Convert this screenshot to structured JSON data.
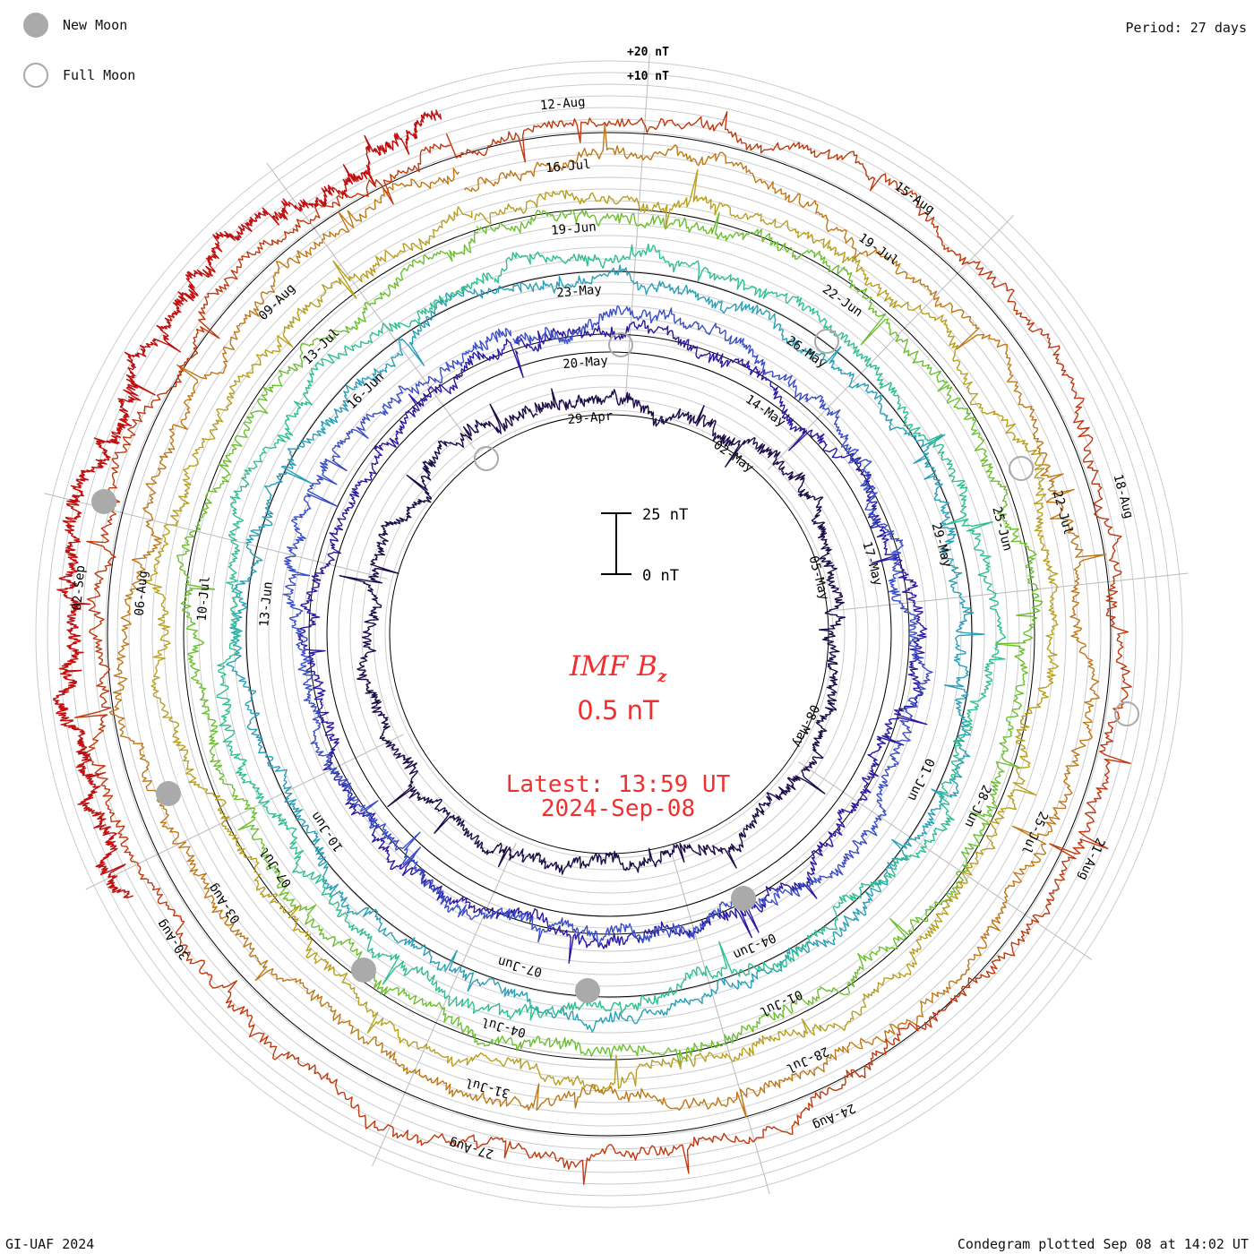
{
  "header": {
    "period": "Period: 27 days"
  },
  "legend": {
    "new_moon": "New Moon",
    "full_moon": "Full Moon"
  },
  "center": {
    "title_main": "IMF B",
    "title_sub": "z",
    "value": "0.5 nT",
    "latest_time": "Latest: 13:59 UT",
    "latest_date": "2024-Sep-08"
  },
  "footer": {
    "credit": "GI-UAF 2024",
    "plotted": "Condegram plotted Sep 08 at 14:02 UT"
  },
  "chart_data": {
    "type": "line",
    "subtype": "polar-condegram",
    "quantity": "IMF Bz",
    "units": "nT",
    "period_days": 27,
    "latest_value_nT": 0.5,
    "scale_bar_labels": [
      "25 nT",
      "0 nT"
    ],
    "scale_bar_nT": [
      0,
      25
    ],
    "outer_scale_labels": [
      "+20 nT",
      "+10 nT"
    ],
    "series": [
      {
        "name": "",
        "color": "#1c0c48",
        "start": "2024-Apr-21",
        "date_labels": [
          "29-Apr",
          "02-May",
          "05-May",
          "08-May"
        ]
      },
      {
        "name": "",
        "color": "#2a1aa0",
        "start": "2024-May-18",
        "date_labels": [
          "20-May",
          "23-May",
          "26-May",
          "29-May",
          "01-Jun",
          "04-Jun",
          "07-Jun",
          "10-Jun",
          "13-Jun",
          "16-Jun"
        ]
      },
      {
        "name": "",
        "color": "#3a4ec8",
        "start": "2024-May-17",
        "date_labels": [
          "14-May",
          "17-May"
        ]
      },
      {
        "name": "",
        "color": "#2aa0b8",
        "start": "2024-Jun-14",
        "date_labels": [
          "19-Jun",
          "22-Jun",
          "25-Jun",
          "28-Jun",
          "01-Jul",
          "04-Jul",
          "07-Jul",
          "10-Jul",
          "13-Jul",
          "16-Jul"
        ]
      },
      {
        "name": "",
        "color": "#2ec090",
        "start": "2024-Jun-14",
        "date_labels": []
      },
      {
        "name": "",
        "color": "#6cc030",
        "start": "2024-Jul-11",
        "date_labels": [
          "19-Jul",
          "22-Jul",
          "25-Jul",
          "28-Jul",
          "31-Jul",
          "03-Aug",
          "06-Aug",
          "09-Aug",
          "12-Aug",
          "16-Jul"
        ]
      },
      {
        "name": "",
        "color": "#b8a020",
        "start": "2024-Aug-07",
        "date_labels": [
          "15-Aug",
          "18-Aug",
          "21-Aug",
          "24-Aug",
          "27-Aug",
          "30-Aug",
          "02-Sep"
        ]
      },
      {
        "name": "",
        "color": "#c07818",
        "start": "2024-Aug-07",
        "date_labels": []
      },
      {
        "name": "",
        "color": "#c03a10",
        "start": "2024-Aug-07",
        "date_labels": []
      },
      {
        "name": "",
        "color": "#c01010",
        "start": "2024-Sep-03",
        "date_labels": []
      }
    ],
    "ring_labels": [
      {
        "ring": 0,
        "label": "29-Apr"
      },
      {
        "ring": 0,
        "label": "02-May"
      },
      {
        "ring": 0,
        "label": "05-May"
      },
      {
        "ring": 0,
        "label": "08-May"
      },
      {
        "ring": 1,
        "label": "20-May"
      },
      {
        "ring": 1,
        "label": "14-May"
      },
      {
        "ring": 1,
        "label": "17-May"
      },
      {
        "ring": 2,
        "label": "23-May"
      },
      {
        "ring": 2,
        "label": "26-May"
      },
      {
        "ring": 2,
        "label": "29-May"
      },
      {
        "ring": 2,
        "label": "01-Jun"
      },
      {
        "ring": 2,
        "label": "04-Jun"
      },
      {
        "ring": 2,
        "label": "07-Jun"
      },
      {
        "ring": 2,
        "label": "10-Jun"
      },
      {
        "ring": 2,
        "label": "13-Jun"
      },
      {
        "ring": 2,
        "label": "16-Jun"
      },
      {
        "ring": 3,
        "label": "19-Jun"
      },
      {
        "ring": 3,
        "label": "22-Jun"
      },
      {
        "ring": 3,
        "label": "25-Jun"
      },
      {
        "ring": 3,
        "label": "28-Jun"
      },
      {
        "ring": 3,
        "label": "01-Jul"
      },
      {
        "ring": 3,
        "label": "04-Jul"
      },
      {
        "ring": 3,
        "label": "07-Jul"
      },
      {
        "ring": 3,
        "label": "10-Jul"
      },
      {
        "ring": 3,
        "label": "13-Jul"
      },
      {
        "ring": 4,
        "label": "16-Jul"
      },
      {
        "ring": 4,
        "label": "19-Jul"
      },
      {
        "ring": 4,
        "label": "22-Jul"
      },
      {
        "ring": 4,
        "label": "25-Jul"
      },
      {
        "ring": 4,
        "label": "28-Jul"
      },
      {
        "ring": 4,
        "label": "31-Jul"
      },
      {
        "ring": 4,
        "label": "03-Aug"
      },
      {
        "ring": 4,
        "label": "06-Aug"
      },
      {
        "ring": 4,
        "label": "09-Aug"
      },
      {
        "ring": 5,
        "label": "12-Aug"
      },
      {
        "ring": 5,
        "label": "15-Aug"
      },
      {
        "ring": 5,
        "label": "18-Aug"
      },
      {
        "ring": 5,
        "label": "21-Aug"
      },
      {
        "ring": 5,
        "label": "24-Aug"
      },
      {
        "ring": 5,
        "label": "27-Aug"
      },
      {
        "ring": 5,
        "label": "30-Aug"
      },
      {
        "ring": 5,
        "label": "02-Sep"
      }
    ],
    "new_moons": [
      "2024-May-08",
      "2024-Jun-06",
      "2024-Jul-05",
      "2024-Aug-04",
      "2024-Sep-03"
    ],
    "full_moons": [
      "2024-Apr-23",
      "2024-May-23",
      "2024-Jun-22",
      "2024-Jul-21",
      "2024-Aug-19"
    ],
    "grid": true
  }
}
